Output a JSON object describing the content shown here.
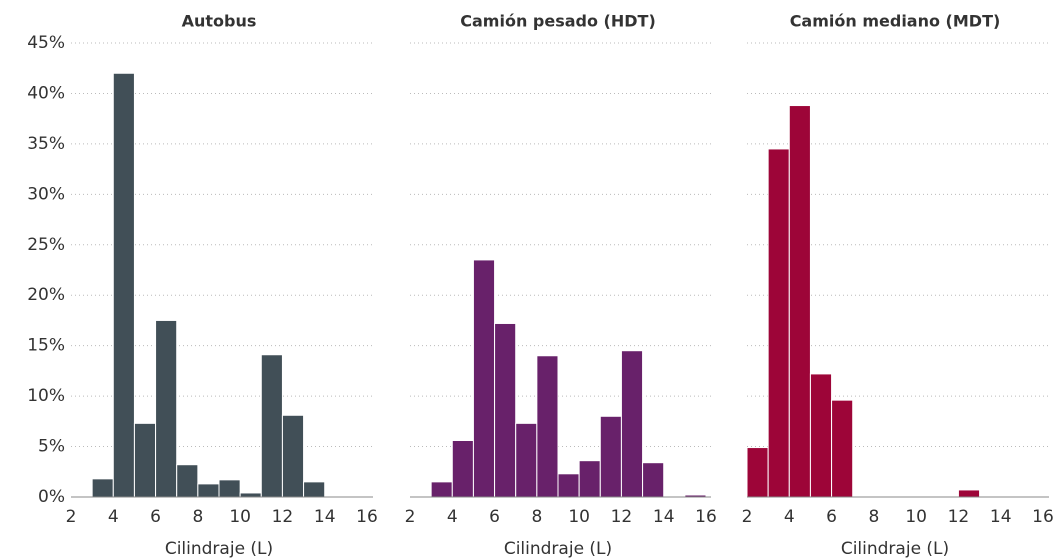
{
  "chart_data": [
    {
      "type": "histogram",
      "title": "Autobus",
      "xlabel": "Cilindraje (L)",
      "color": "#414f57",
      "bins": [
        3,
        4,
        5,
        6,
        7,
        8,
        9,
        10,
        11,
        12,
        13,
        14,
        15,
        16
      ],
      "values": [
        1.8,
        42,
        7.3,
        17.5,
        3.2,
        1.3,
        1.7,
        0.4,
        14.1,
        8.1,
        1.5,
        0,
        0
      ],
      "xlim": [
        2,
        16
      ],
      "xticks": [
        2,
        4,
        6,
        8,
        10,
        12,
        14,
        16
      ],
      "ylim": [
        0,
        45
      ],
      "yticks": [
        {
          "value": 0,
          "label": "0%"
        },
        {
          "value": 5,
          "label": "5%"
        },
        {
          "value": 10,
          "label": "10%"
        },
        {
          "value": 15,
          "label": "15%"
        },
        {
          "value": 20,
          "label": "20%"
        },
        {
          "value": 25,
          "label": "25%"
        },
        {
          "value": 30,
          "label": "30%"
        },
        {
          "value": 35,
          "label": "35%"
        },
        {
          "value": 40,
          "label": "40%"
        },
        {
          "value": 45,
          "label": "45%"
        }
      ],
      "grid": true
    },
    {
      "type": "histogram",
      "title": "Camión pesado (HDT)",
      "xlabel": "Cilindraje (L)",
      "color": "#68216a",
      "bins": [
        3,
        4,
        5,
        6,
        7,
        8,
        9,
        10,
        11,
        12,
        13,
        14,
        15,
        16
      ],
      "values": [
        1.5,
        5.6,
        23.5,
        17.2,
        7.3,
        14,
        2.3,
        3.6,
        8,
        14.5,
        3.4,
        0,
        0.2
      ],
      "xlim": [
        2,
        16
      ],
      "xticks": [
        2,
        4,
        6,
        8,
        10,
        12,
        14,
        16
      ],
      "ylim": [
        0,
        45
      ],
      "grid": true
    },
    {
      "type": "histogram",
      "title": "Camión mediano (MDT)",
      "xlabel": "Cilindraje (L)",
      "color": "#9d0538",
      "bins": [
        2,
        3,
        4,
        5,
        6,
        7,
        8,
        9,
        10,
        11,
        12,
        13,
        14,
        15,
        16
      ],
      "values": [
        4.9,
        34.5,
        38.8,
        12.2,
        9.6,
        0,
        0,
        0,
        0,
        0,
        0.7,
        0,
        0,
        0
      ],
      "xlim": [
        2,
        16
      ],
      "xticks": [
        2,
        4,
        6,
        8,
        10,
        12,
        14,
        16
      ],
      "ylim": [
        0,
        45
      ],
      "grid": true
    }
  ]
}
